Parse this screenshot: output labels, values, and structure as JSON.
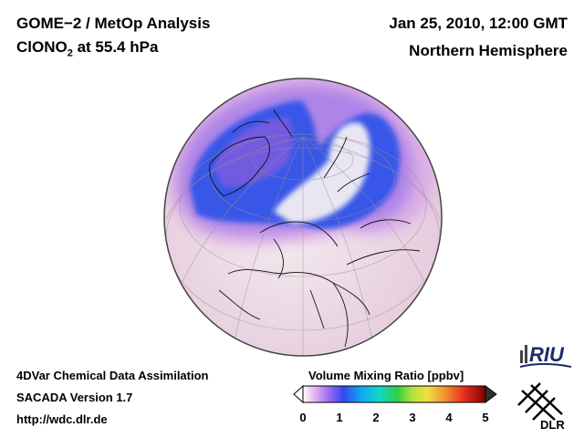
{
  "header": {
    "title_line1": "GOME−2 / MetOp Analysis",
    "title_species": "ClONO",
    "title_subscript": "2",
    "title_level": " at 55.4 hPa",
    "date": "Jan 25, 2010, 12:00 GMT",
    "region": "Northern Hemisphere"
  },
  "footer": {
    "line1": "4DVar Chemical Data Assimilation",
    "line2": "SACADA Version 1.7",
    "line3": "http://wdc.dlr.de"
  },
  "colorbar": {
    "title": "Volume Mixing Ratio [ppbv]",
    "ticks": [
      "0",
      "1",
      "2",
      "3",
      "4",
      "5"
    ],
    "range": [
      0,
      5
    ]
  },
  "logos": {
    "riu": "RIU",
    "dlr": "DLR"
  },
  "colors": {
    "ocean_fill": "#eedfe6",
    "vortex_edge": "#2f4fe8",
    "low_values": "#8a5ce8"
  }
}
